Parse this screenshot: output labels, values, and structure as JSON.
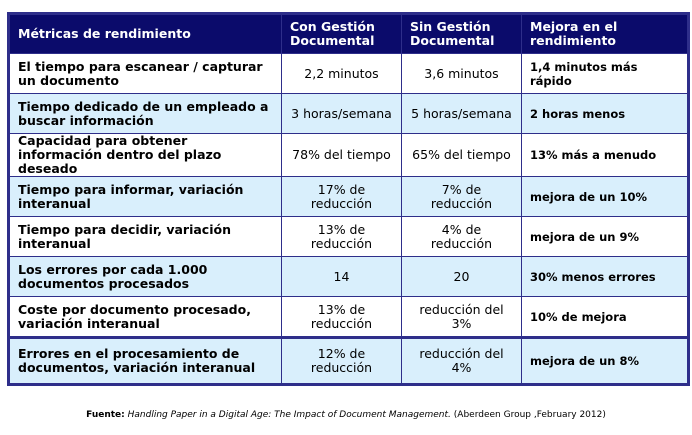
{
  "table": {
    "headers": [
      "Métricas de rendimiento",
      "Con Gestión Documental",
      "Sin Gestión Documental",
      "Mejora en el rendimiento"
    ],
    "rows": [
      [
        "El tiempo para escanear / capturar un documento",
        "2,2 minutos",
        "3,6 minutos",
        "1,4 minutos más rápido"
      ],
      [
        "Tiempo dedicado de un empleado a buscar información",
        "3 horas/semana",
        "5 horas/semana",
        "2 horas menos"
      ],
      [
        "Capacidad para obtener información dentro del plazo deseado",
        "78% del tiempo",
        "65% del tiempo",
        "13% más a menudo"
      ],
      [
        "Tiempo para informar, variación interanual",
        "17% de reducción",
        "7% de reducción",
        "mejora de un 10%"
      ],
      [
        "Tiempo para decidir, variación interanual",
        "13% de reducción",
        "4% de reducción",
        "mejora de un 9%"
      ],
      [
        "Los errores por cada 1.000 documentos procesados",
        "14",
        "20",
        "30% menos errores"
      ],
      [
        "Coste por documento procesado, variación interanual",
        "13% de reducción",
        "reducción del 3%",
        "10% de mejora"
      ],
      [
        "Errores en el procesamiento de documentos, variación interanual",
        "12% de reducción",
        "reducción del 4%",
        "mejora de un 8%"
      ]
    ]
  },
  "source": {
    "label": "Fuente:",
    "title": "Handling Paper in a Digital Age: The Impact of Document Management.",
    "rest": "(Aberdeen Group ,February 2012)"
  },
  "colors": {
    "header_bg": "#0b0b6b",
    "alt_row": "#d9effc",
    "border": "#2e2e8a"
  }
}
